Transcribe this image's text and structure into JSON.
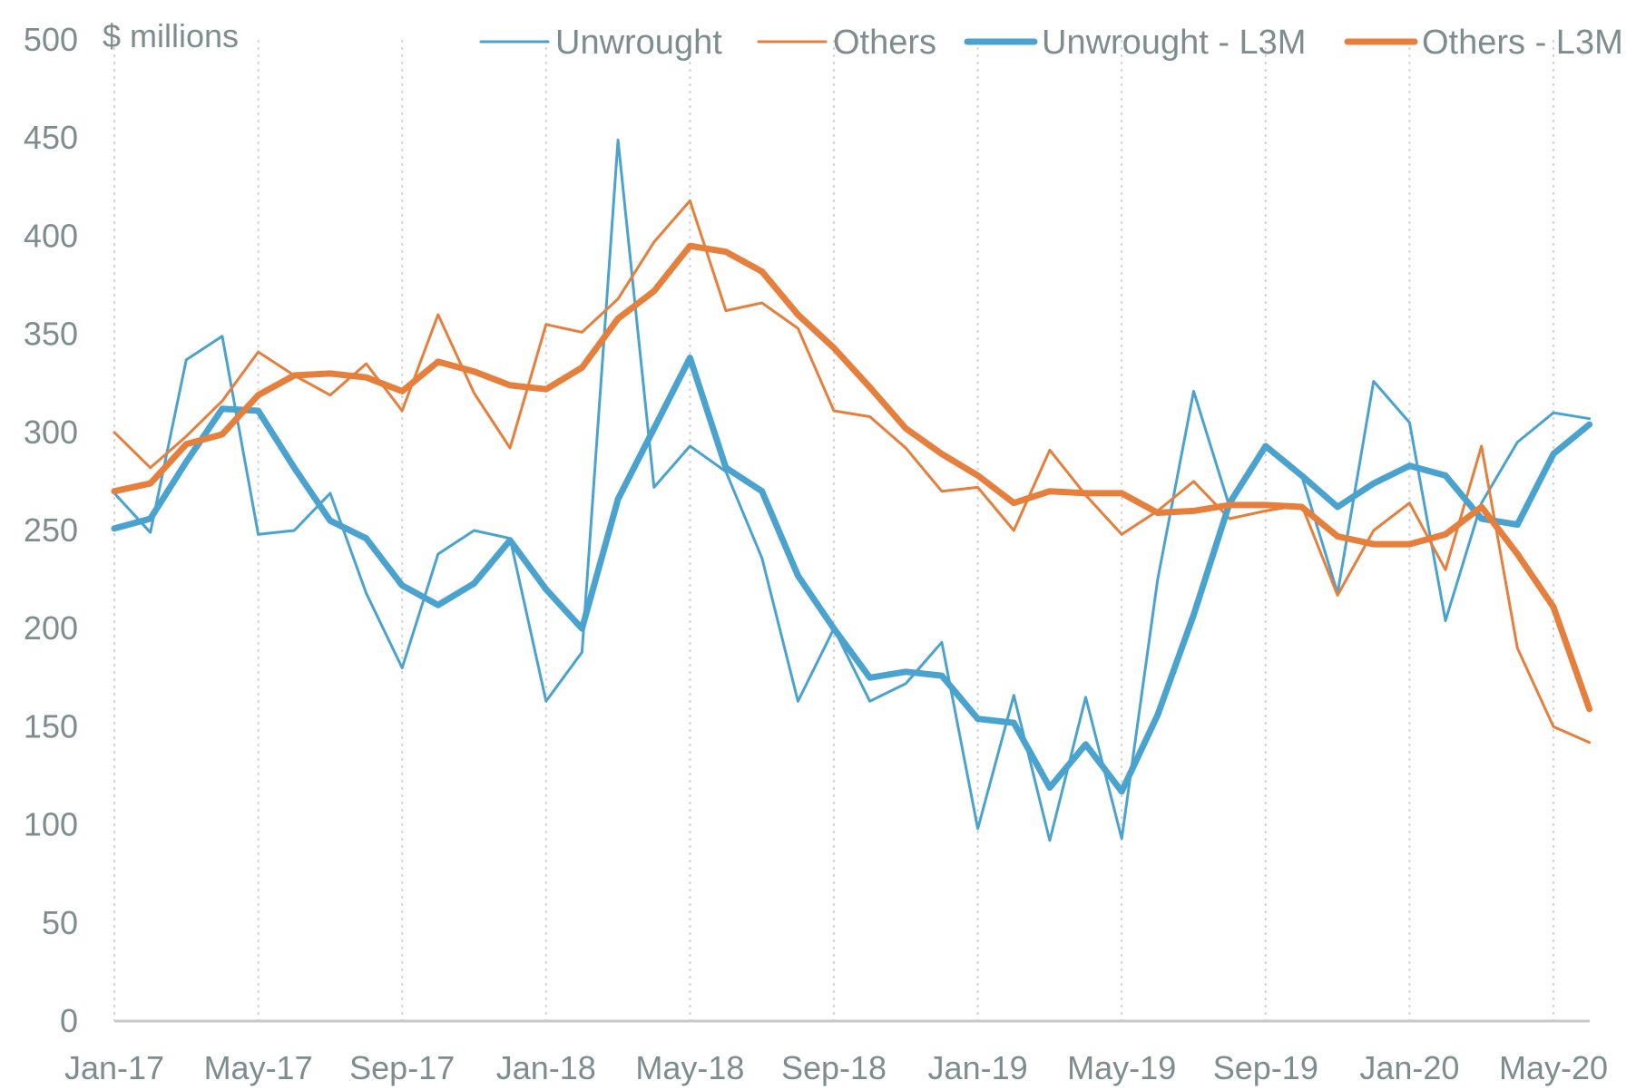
{
  "chart_data": {
    "type": "line",
    "title": "",
    "ylabel": "$ millions",
    "xlabel": "",
    "ylim": [
      0,
      500
    ],
    "yticks": [
      0,
      50,
      100,
      150,
      200,
      250,
      300,
      350,
      400,
      450,
      500
    ],
    "grid": "vertical dashed at labelled months",
    "legend_position": "top-right",
    "x": [
      "Jan-17",
      "Feb-17",
      "Mar-17",
      "Apr-17",
      "May-17",
      "Jun-17",
      "Jul-17",
      "Aug-17",
      "Sep-17",
      "Oct-17",
      "Nov-17",
      "Dec-17",
      "Jan-18",
      "Feb-18",
      "Mar-18",
      "Apr-18",
      "May-18",
      "Jun-18",
      "Jul-18",
      "Aug-18",
      "Sep-18",
      "Oct-18",
      "Nov-18",
      "Dec-18",
      "Jan-19",
      "Feb-19",
      "Mar-19",
      "Apr-19",
      "May-19",
      "Jun-19",
      "Jul-19",
      "Aug-19",
      "Sep-19",
      "Oct-19",
      "Nov-19",
      "Dec-19",
      "Jan-20",
      "Feb-20",
      "Mar-20",
      "Apr-20",
      "May-20",
      "Jun-20"
    ],
    "xtick_labels": [
      "Jan-17",
      "May-17",
      "Sep-17",
      "Jan-18",
      "May-18",
      "Sep-18",
      "Jan-19",
      "May-19",
      "Sep-19",
      "Jan-20",
      "May-20"
    ],
    "xtick_indices": [
      0,
      4,
      8,
      12,
      16,
      20,
      24,
      28,
      32,
      36,
      40
    ],
    "series": [
      {
        "name": "Unwrought",
        "color": "#4aa3cf",
        "style": "thin",
        "values": [
          269,
          249,
          337,
          349,
          248,
          250,
          269,
          218,
          180,
          238,
          250,
          246,
          163,
          188,
          449,
          272,
          293,
          280,
          236,
          163,
          200,
          163,
          172,
          193,
          98,
          166,
          92,
          165,
          93,
          225,
          321,
          262,
          293,
          278,
          218,
          326,
          305,
          204,
          264,
          295,
          310,
          307
        ]
      },
      {
        "name": "Others",
        "color": "#e67f3c",
        "style": "thin",
        "values": [
          300,
          282,
          298,
          316,
          341,
          329,
          319,
          335,
          311,
          360,
          320,
          292,
          355,
          351,
          368,
          397,
          418,
          362,
          366,
          353,
          311,
          308,
          292,
          270,
          272,
          250,
          291,
          268,
          248,
          260,
          275,
          256,
          260,
          263,
          217,
          250,
          264,
          230,
          293,
          190,
          150,
          142
        ]
      },
      {
        "name": "Unwrought - L3M",
        "color": "#4aa3cf",
        "style": "thick",
        "values": [
          251,
          256,
          285,
          312,
          311,
          282,
          255,
          246,
          222,
          212,
          223,
          245,
          220,
          200,
          266,
          302,
          338,
          282,
          270,
          227,
          200,
          175,
          178,
          176,
          154,
          152,
          119,
          141,
          117,
          156,
          207,
          264,
          293,
          278,
          262,
          274,
          283,
          278,
          256,
          253,
          289,
          304
        ]
      },
      {
        "name": "Others - L3M",
        "color": "#e67f3c",
        "style": "thick",
        "values": [
          270,
          274,
          294,
          299,
          319,
          329,
          330,
          328,
          321,
          336,
          331,
          324,
          322,
          333,
          358,
          372,
          395,
          392,
          382,
          360,
          343,
          323,
          302,
          289,
          278,
          264,
          270,
          269,
          269,
          259,
          260,
          263,
          263,
          262,
          247,
          243,
          243,
          248,
          262,
          238,
          211,
          159
        ]
      }
    ]
  }
}
